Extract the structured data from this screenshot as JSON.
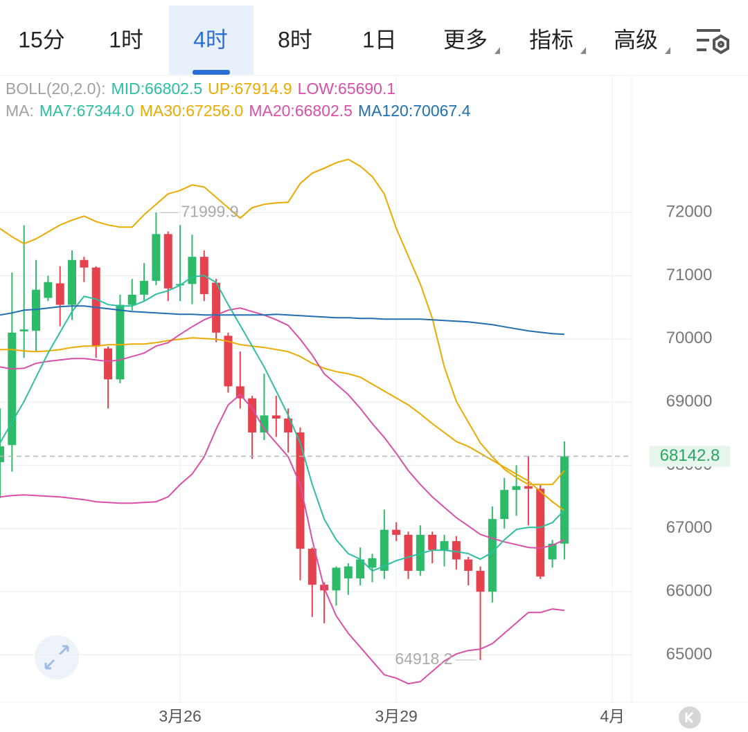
{
  "tabs": [
    {
      "label": "15分"
    },
    {
      "label": "1时"
    },
    {
      "label": "4时",
      "active": true
    },
    {
      "label": "8时"
    },
    {
      "label": "1日"
    },
    {
      "label": "更多",
      "dropdown": true
    },
    {
      "label": "指标",
      "dropdown": true
    },
    {
      "label": "高级",
      "dropdown": true
    }
  ],
  "chart_data": {
    "type": "candlestick",
    "indicators": [
      [
        {
          "text": "BOLL(20,2.0):",
          "color": "#a0a0a0"
        },
        {
          "text": "MID:66802.5",
          "color": "#2bbf9f"
        },
        {
          "text": "UP:67914.9",
          "color": "#eaaa00"
        },
        {
          "text": "LOW:65690.1",
          "color": "#d94fa8"
        }
      ],
      [
        {
          "text": "MA:",
          "color": "#a0a0a0"
        },
        {
          "text": "MA7:67344.0",
          "color": "#2bbf9f"
        },
        {
          "text": "MA30:67256.0",
          "color": "#eaaa00"
        },
        {
          "text": "MA20:66802.5",
          "color": "#d94fa8"
        },
        {
          "text": "MA120:70067.4",
          "color": "#1f6fb0"
        }
      ]
    ],
    "open": [
      68050,
      68320,
      70120,
      70130,
      70650,
      70880,
      70540,
      71250,
      71130,
      69850,
      69360,
      70540,
      70700,
      70920,
      71660,
      70850,
      70870,
      71300,
      70890,
      70050,
      69250,
      69060,
      68520,
      68790,
      68740,
      68520,
      66680,
      66110,
      66020,
      66210,
      66210,
      66380,
      66330,
      66980,
      66900,
      66330,
      66900,
      66660,
      66800,
      66510,
      66330,
      66000,
      67150,
      67610,
      67670,
      67630,
      66510,
      66760
    ],
    "high": [
      68900,
      71050,
      71800,
      71250,
      71000,
      71150,
      71400,
      71300,
      71150,
      69880,
      70700,
      70950,
      71200,
      71999.9,
      71700,
      71800,
      71650,
      71400,
      70950,
      70100,
      69800,
      69100,
      69450,
      69100,
      68900,
      68600,
      66700,
      66150,
      66400,
      66450,
      66700,
      66600,
      67300,
      67100,
      66950,
      67050,
      66950,
      66900,
      66880,
      66550,
      66400,
      67350,
      67800,
      68000,
      68150,
      67700,
      66820,
      68380
    ],
    "low": [
      67480,
      67900,
      69700,
      69800,
      70600,
      70200,
      70300,
      70900,
      69700,
      68900,
      69300,
      70450,
      70600,
      70850,
      70600,
      70600,
      70550,
      70600,
      69950,
      69150,
      68900,
      68100,
      68400,
      68450,
      68200,
      66180,
      65600,
      65500,
      65780,
      65950,
      66100,
      66150,
      66200,
      66800,
      66200,
      66250,
      66450,
      66400,
      66350,
      66100,
      64918.2,
      65830,
      67000,
      67200,
      67050,
      66200,
      66380,
      66510
    ],
    "close": [
      68300,
      70100,
      70150,
      70780,
      70900,
      70540,
      71250,
      71130,
      69880,
      69360,
      70540,
      70700,
      70920,
      71660,
      70800,
      70870,
      71300,
      70710,
      70100,
      69250,
      69060,
      68520,
      68790,
      68740,
      68520,
      66680,
      66110,
      66020,
      66380,
      66400,
      66510,
      66530,
      66980,
      66900,
      66330,
      66900,
      66660,
      66800,
      66510,
      66330,
      66000,
      67150,
      67610,
      67670,
      67630,
      66240,
      66760,
      68142.8
    ],
    "up_color": "#2dbb6a",
    "down_color": "#e5424d",
    "lines": [
      {
        "color": "#eaaa00",
        "values": [
          71748,
          71617,
          71507,
          71584,
          71693,
          71803,
          71880,
          71945,
          71858,
          71803,
          71770,
          71770,
          71967,
          72131,
          72296,
          72350,
          72438,
          72405,
          72241,
          72077,
          71912,
          72077,
          72131,
          72153,
          72164,
          72460,
          72624,
          72701,
          72789,
          72843,
          72734,
          72570,
          72296,
          71748,
          71310,
          70872,
          70325,
          69558,
          69011,
          68682,
          68354,
          68135,
          67938,
          67806,
          67697,
          67697,
          67697,
          67916
        ]
      },
      {
        "color": "#eaaa00",
        "values": [
          69832,
          69832,
          69810,
          69799,
          69810,
          69832,
          69865,
          69887,
          69887,
          69909,
          69909,
          69920,
          69920,
          69941,
          69974,
          69996,
          70018,
          70007,
          69996,
          69963,
          69909,
          69887,
          69865,
          69832,
          69799,
          69722,
          69613,
          69536,
          69482,
          69449,
          69394,
          69284,
          69175,
          69065,
          68956,
          68814,
          68660,
          68518,
          68376,
          68299,
          68189,
          68080,
          67970,
          67861,
          67751,
          67587,
          67423,
          67281
        ]
      },
      {
        "color": "#d94fa8",
        "values": [
          69558,
          69525,
          69536,
          69613,
          69646,
          69668,
          69690,
          69690,
          69668,
          69646,
          69668,
          69722,
          69777,
          69887,
          69941,
          70073,
          70193,
          70303,
          70379,
          70456,
          70489,
          70434,
          70379,
          70303,
          70215,
          69996,
          69744,
          69449,
          69284,
          69120,
          68901,
          68660,
          68441,
          68189,
          67916,
          67697,
          67500,
          67335,
          67171,
          67040,
          66908,
          66843,
          66788,
          66744,
          66700,
          66689,
          66733,
          66821
        ]
      },
      {
        "color": "#d94fa8",
        "values": [
          67500,
          67522,
          67533,
          67522,
          67511,
          67500,
          67478,
          67456,
          67423,
          67412,
          67401,
          67401,
          67412,
          67423,
          67500,
          67697,
          67861,
          68135,
          68573,
          68956,
          69120,
          68901,
          68573,
          68354,
          68135,
          67697,
          66821,
          66054,
          65616,
          65342,
          65123,
          64904,
          64685,
          64631,
          64543,
          64576,
          64740,
          64904,
          65014,
          65069,
          65091,
          65178,
          65342,
          65507,
          65671,
          65671,
          65726,
          65704
        ]
      },
      {
        "color": "#2bbf9f",
        "values": [
          68354,
          68682,
          69011,
          69394,
          69777,
          70105,
          70434,
          70675,
          70631,
          70544,
          70522,
          70522,
          70598,
          70708,
          70763,
          70850,
          70982,
          71004,
          70894,
          70544,
          70215,
          69887,
          69558,
          69175,
          68792,
          68354,
          67697,
          67149,
          66821,
          66602,
          66514,
          66328,
          66405,
          66492,
          66547,
          66602,
          66656,
          66656,
          66635,
          66602,
          66514,
          66624,
          66821,
          66985,
          67018,
          67018,
          67094,
          67292
        ]
      },
      {
        "color": "#1f6fb0",
        "values": [
          70379,
          70412,
          70456,
          70467,
          70489,
          70511,
          70522,
          70522,
          70500,
          70478,
          70456,
          70434,
          70423,
          70412,
          70401,
          70390,
          70390,
          70379,
          70379,
          70379,
          70379,
          70379,
          70379,
          70390,
          70379,
          70368,
          70358,
          70347,
          70336,
          70336,
          70325,
          70325,
          70314,
          70314,
          70314,
          70314,
          70303,
          70292,
          70281,
          70270,
          70248,
          70226,
          70193,
          70160,
          70128,
          70106,
          70084,
          70073
        ]
      }
    ],
    "xlim": [
      0,
      52.6
    ],
    "xticks": [
      {
        "value": 15,
        "label": "3月26"
      },
      {
        "value": 33,
        "label": "3月29"
      },
      {
        "value": 51,
        "label": "4月"
      }
    ],
    "ylim": [
      64250,
      74160
    ],
    "yticks": [
      65000,
      66000,
      67000,
      68000,
      69000,
      70000,
      71000,
      72000
    ],
    "grid": true,
    "last_price": 68142.8,
    "high_mark": 71999.9,
    "low_mark": 64918.2
  }
}
